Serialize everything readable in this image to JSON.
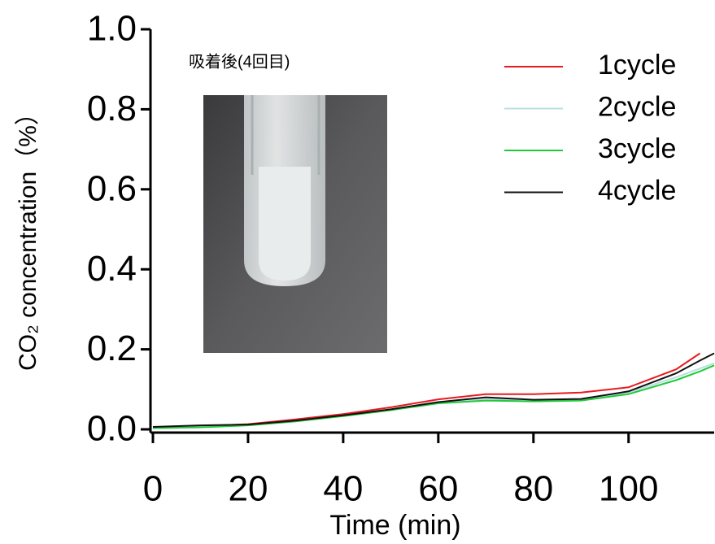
{
  "chart_data": {
    "type": "line",
    "y_label": "CO₂ concentration（%）",
    "x_label": "Time (min)",
    "annotation": "吸着後(4回目)",
    "x": [
      0,
      10,
      20,
      30,
      40,
      50,
      60,
      70,
      80,
      90,
      100,
      110,
      115,
      118
    ],
    "series": [
      {
        "name": "1cycle",
        "color": "#e8191f",
        "values": [
          0.005,
          0.008,
          0.013,
          0.025,
          0.038,
          0.055,
          0.075,
          0.088,
          0.088,
          0.092,
          0.105,
          0.15,
          0.19,
          null
        ]
      },
      {
        "name": "2cycle",
        "color": "#b9dfe0",
        "values": [
          0.004,
          0.006,
          0.011,
          0.021,
          0.034,
          0.049,
          0.066,
          0.075,
          0.073,
          0.074,
          0.092,
          0.13,
          0.152,
          0.165
        ]
      },
      {
        "name": "3cycle",
        "color": "#22c83a",
        "values": [
          0.003,
          0.005,
          0.01,
          0.02,
          0.033,
          0.048,
          0.065,
          0.072,
          0.07,
          0.072,
          0.088,
          0.123,
          0.145,
          0.16
        ]
      },
      {
        "name": "4cycle",
        "color": "#111111",
        "values": [
          0.006,
          0.01,
          0.012,
          0.022,
          0.035,
          0.05,
          0.068,
          0.08,
          0.074,
          0.076,
          0.095,
          0.14,
          0.172,
          0.19
        ]
      }
    ],
    "xlim": [
      0,
      118
    ],
    "ylim": [
      0,
      1
    ],
    "xticks": [
      0,
      20,
      40,
      60,
      80,
      100
    ],
    "yticks": [
      {
        "value": 0,
        "label": "0.0"
      },
      {
        "value": 0.2,
        "label": "0.2"
      },
      {
        "value": 0.4,
        "label": "0.4"
      },
      {
        "value": 0.6,
        "label": "0.6"
      },
      {
        "value": 0.8,
        "label": "0.8"
      },
      {
        "value": 1,
        "label": "1.0"
      }
    ],
    "grid": false,
    "legend": "top-right"
  }
}
